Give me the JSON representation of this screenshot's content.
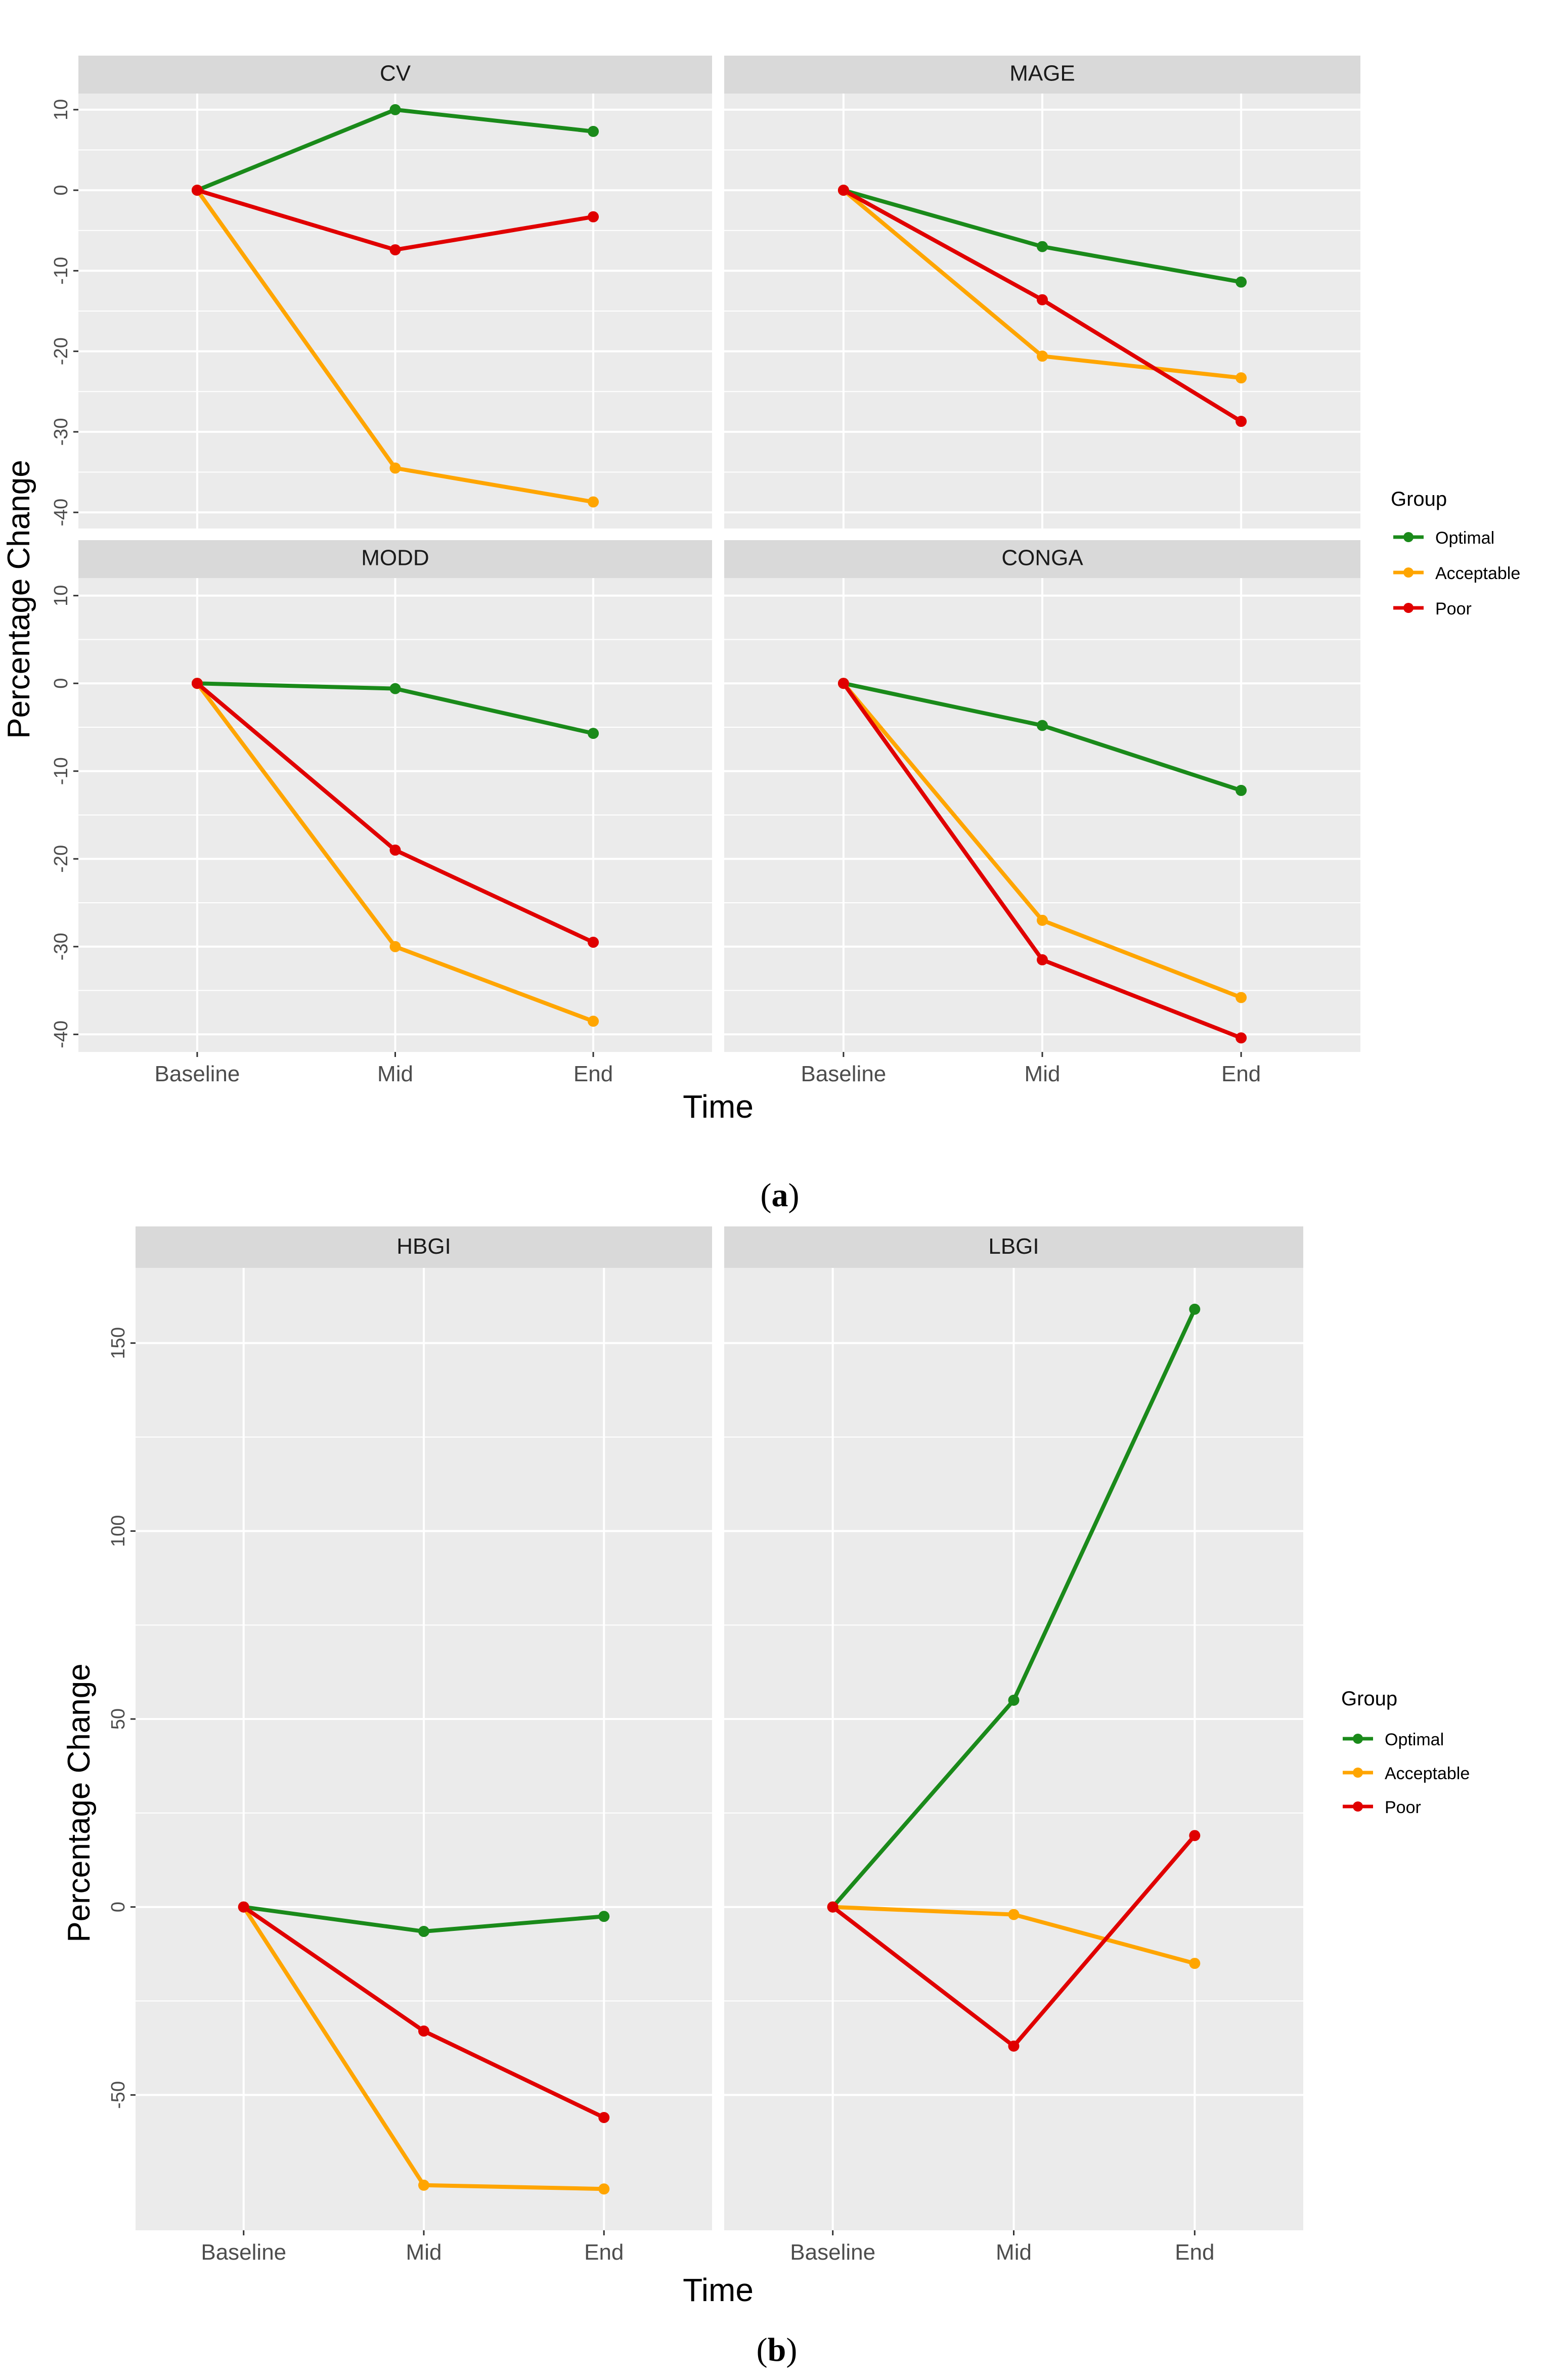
{
  "colors": {
    "optimal": "#1a8a1a",
    "acceptable": "#ffa500",
    "poor": "#e00000",
    "panel_bg": "#ebebeb",
    "strip_bg": "#d9d9d9",
    "grid": "#ffffff"
  },
  "figure_a": {
    "caption_letter": "a",
    "xlabel": "Time",
    "ylabel": "Percentage Change"
  },
  "figure_b": {
    "caption_letter": "b",
    "xlabel": "Time",
    "ylabel": "Percentage Change"
  },
  "chart_data": [
    {
      "type": "line",
      "title": "CV",
      "figure": "a",
      "categories": [
        "Baseline",
        "Mid",
        "End"
      ],
      "ylim": [
        -42,
        12
      ],
      "yticks": [
        10,
        0,
        -10,
        -20,
        -30,
        -40
      ],
      "series": [
        {
          "name": "Optimal",
          "values": [
            0,
            10,
            7.3
          ]
        },
        {
          "name": "Acceptable",
          "values": [
            0,
            -34.5,
            -38.7
          ]
        },
        {
          "name": "Poor",
          "values": [
            0,
            -7.4,
            -3.3
          ]
        }
      ]
    },
    {
      "type": "line",
      "title": "MAGE",
      "figure": "a",
      "categories": [
        "Baseline",
        "Mid",
        "End"
      ],
      "ylim": [
        -42,
        12
      ],
      "yticks": [
        10,
        0,
        -10,
        -20,
        -30,
        -40
      ],
      "series": [
        {
          "name": "Optimal",
          "values": [
            0,
            -7,
            -11.4
          ]
        },
        {
          "name": "Acceptable",
          "values": [
            0,
            -20.6,
            -23.3
          ]
        },
        {
          "name": "Poor",
          "values": [
            0,
            -13.6,
            -28.7
          ]
        }
      ]
    },
    {
      "type": "line",
      "title": "MODD",
      "figure": "a",
      "categories": [
        "Baseline",
        "Mid",
        "End"
      ],
      "ylim": [
        -42,
        12
      ],
      "yticks": [
        10,
        0,
        -10,
        -20,
        -30,
        -40
      ],
      "series": [
        {
          "name": "Optimal",
          "values": [
            0,
            -0.6,
            -5.7
          ]
        },
        {
          "name": "Acceptable",
          "values": [
            0,
            -30,
            -38.5
          ]
        },
        {
          "name": "Poor",
          "values": [
            0,
            -19,
            -29.5
          ]
        }
      ]
    },
    {
      "type": "line",
      "title": "CONGA",
      "figure": "a",
      "categories": [
        "Baseline",
        "Mid",
        "End"
      ],
      "ylim": [
        -42,
        12
      ],
      "yticks": [
        10,
        0,
        -10,
        -20,
        -30,
        -40
      ],
      "series": [
        {
          "name": "Optimal",
          "values": [
            0,
            -4.8,
            -12.2
          ]
        },
        {
          "name": "Acceptable",
          "values": [
            0,
            -27,
            -35.8
          ]
        },
        {
          "name": "Poor",
          "values": [
            0,
            -31.5,
            -40.4
          ]
        }
      ]
    },
    {
      "type": "line",
      "title": "HBGI",
      "figure": "b",
      "categories": [
        "Baseline",
        "Mid",
        "End"
      ],
      "ylim": [
        -86,
        170
      ],
      "yticks": [
        150,
        100,
        50,
        0,
        -50
      ],
      "series": [
        {
          "name": "Optimal",
          "values": [
            0,
            -6.5,
            -2.5
          ]
        },
        {
          "name": "Acceptable",
          "values": [
            0,
            -74,
            -75
          ]
        },
        {
          "name": "Poor",
          "values": [
            0,
            -33,
            -56
          ]
        }
      ]
    },
    {
      "type": "line",
      "title": "LBGI",
      "figure": "b",
      "categories": [
        "Baseline",
        "Mid",
        "End"
      ],
      "ylim": [
        -86,
        170
      ],
      "yticks": [
        150,
        100,
        50,
        0,
        -50
      ],
      "series": [
        {
          "name": "Optimal",
          "values": [
            0,
            55,
            159
          ]
        },
        {
          "name": "Acceptable",
          "values": [
            0,
            -2,
            -15
          ]
        },
        {
          "name": "Poor",
          "values": [
            0,
            -37,
            19
          ]
        }
      ]
    }
  ],
  "legend": {
    "title": "Group",
    "items": [
      "Optimal",
      "Acceptable",
      "Poor"
    ]
  }
}
